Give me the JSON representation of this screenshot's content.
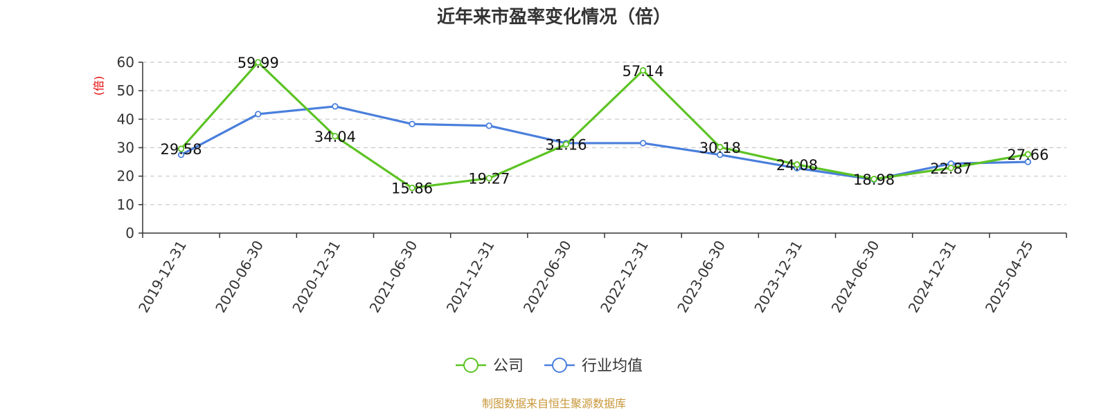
{
  "chart_data": {
    "type": "line",
    "title": "近年来市盈率变化情况（倍）",
    "ylabel": "(倍)",
    "ylim": [
      0,
      60
    ],
    "yticks": [
      0,
      10,
      20,
      30,
      40,
      50,
      60
    ],
    "grid": true,
    "legend_position": "bottom",
    "categories": [
      "2019-12-31",
      "2020-06-30",
      "2020-12-31",
      "2021-06-30",
      "2021-12-31",
      "2022-06-30",
      "2022-12-31",
      "2023-06-30",
      "2023-12-31",
      "2024-06-30",
      "2024-12-31",
      "2025-04-25"
    ],
    "series": [
      {
        "name": "公司",
        "color": "#5cc323",
        "values": [
          29.58,
          59.99,
          34.04,
          15.86,
          19.27,
          31.16,
          57.14,
          30.18,
          24.08,
          18.98,
          22.87,
          27.66
        ],
        "labels": [
          "29.58",
          "59.99",
          "34.04",
          "15.86",
          "19.27",
          "31.16",
          "57.14",
          "30.18",
          "24.08",
          "18.98",
          "22.87",
          "27.66"
        ]
      },
      {
        "name": "行业均值",
        "color": "#4a7fdc",
        "values": [
          27.5,
          41.8,
          44.5,
          38.3,
          37.7,
          31.6,
          31.6,
          27.5,
          22.8,
          18.8,
          24.4,
          25.0
        ]
      }
    ],
    "ylabel_color": "#e60000",
    "source": "制图数据来自恒生聚源数据库",
    "source_color": "#c8973a"
  }
}
